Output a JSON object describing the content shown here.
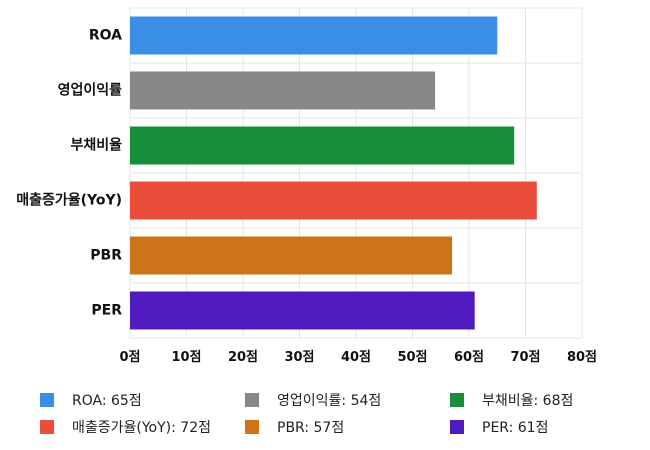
{
  "chart_data": {
    "type": "bar",
    "orientation": "horizontal",
    "categories": [
      "ROA",
      "영업이익률",
      "부채비율",
      "매출증가율(YoY)",
      "PBR",
      "PER"
    ],
    "values": [
      65,
      54,
      68,
      72,
      57,
      61
    ],
    "colors": [
      "#3a8ee6",
      "#888888",
      "#178f3a",
      "#ea4d3a",
      "#cd7418",
      "#4f1bbf"
    ],
    "xlim": [
      0,
      80
    ],
    "x_ticks": [
      0,
      10,
      20,
      30,
      40,
      50,
      60,
      70,
      80
    ],
    "x_tick_labels": [
      "0점",
      "10점",
      "20점",
      "30점",
      "40점",
      "50점",
      "60점",
      "70점",
      "80점"
    ],
    "grid": true,
    "legend_position": "bottom",
    "legend": [
      {
        "label": "ROA: 65점",
        "color": "#3a8ee6"
      },
      {
        "label": "영업이익률: 54점",
        "color": "#888888"
      },
      {
        "label": "부채비율: 68점",
        "color": "#178f3a"
      },
      {
        "label": "매출증가율(YoY): 72점",
        "color": "#ea4d3a"
      },
      {
        "label": "PBR: 57점",
        "color": "#cd7418"
      },
      {
        "label": "PER: 61점",
        "color": "#4f1bbf"
      }
    ]
  }
}
